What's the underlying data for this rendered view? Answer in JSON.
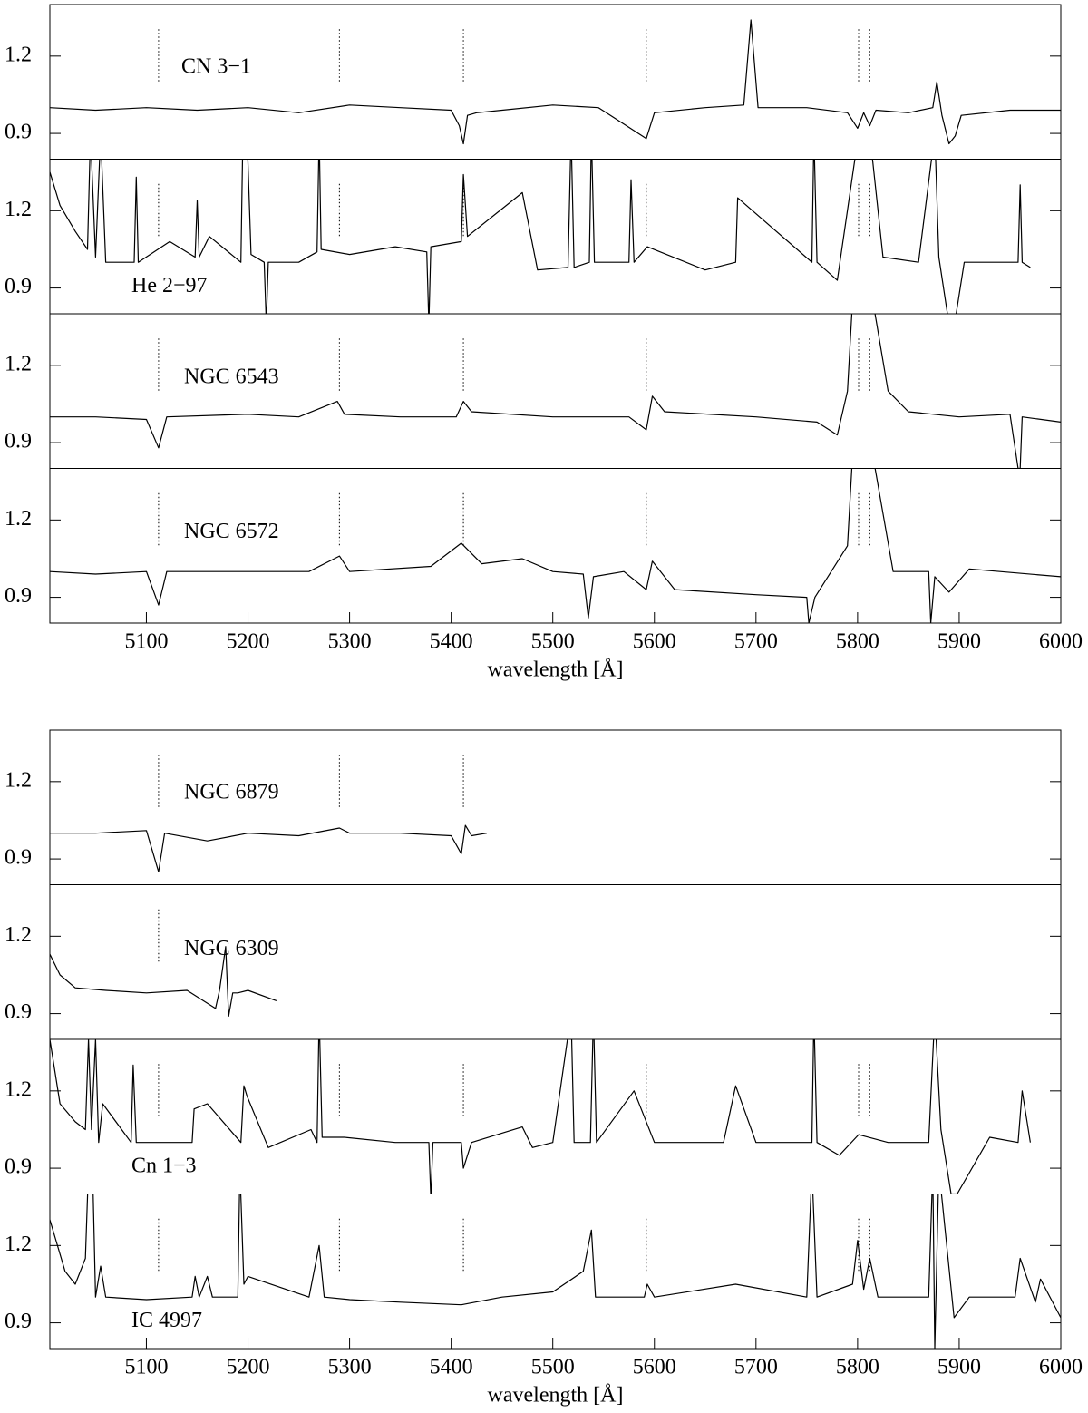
{
  "chart_data": [
    {
      "type": "line",
      "label": "CN 3−1",
      "xlim": [
        5005,
        6000
      ],
      "ylim": [
        0.8,
        1.4
      ],
      "yticks": [
        0.9,
        1.2
      ],
      "markers": [
        5112,
        5290,
        5412,
        5592,
        5801,
        5812
      ],
      "x": [
        5005,
        5050,
        5100,
        5150,
        5200,
        5250,
        5300,
        5350,
        5400,
        5408,
        5412,
        5416,
        5425,
        5450,
        5500,
        5545,
        5592,
        5600,
        5650,
        5688,
        5695,
        5702,
        5750,
        5790,
        5800,
        5806,
        5812,
        5818,
        5850,
        5874,
        5878,
        5883,
        5890,
        5896,
        5902,
        5950,
        6000
      ],
      "values": [
        1.0,
        0.99,
        1.0,
        0.99,
        1.0,
        0.98,
        1.01,
        1.0,
        0.99,
        0.93,
        0.86,
        0.97,
        0.98,
        0.99,
        1.01,
        1.0,
        0.88,
        0.98,
        1.0,
        1.01,
        1.34,
        1.0,
        1.0,
        0.98,
        0.92,
        0.98,
        0.93,
        0.99,
        0.98,
        1.0,
        1.1,
        0.97,
        0.86,
        0.89,
        0.97,
        0.99,
        0.99
      ]
    },
    {
      "type": "line",
      "label": "He 2−97",
      "xlim": [
        5005,
        6000
      ],
      "ylim": [
        0.8,
        1.4
      ],
      "yticks": [
        0.9,
        1.2
      ],
      "markers": [
        5112,
        5290,
        5412,
        5592,
        5801,
        5812
      ],
      "x": [
        5005,
        5015,
        5030,
        5042,
        5045,
        5050,
        5055,
        5060,
        5088,
        5090,
        5092,
        5123,
        5148,
        5150,
        5152,
        5162,
        5193,
        5195,
        5199,
        5203,
        5216,
        5218,
        5220,
        5250,
        5268,
        5270,
        5272,
        5300,
        5345,
        5376,
        5378,
        5380,
        5410,
        5412,
        5416,
        5470,
        5485,
        5515,
        5518,
        5521,
        5536,
        5538,
        5541,
        5575,
        5577,
        5580,
        5593,
        5650,
        5680,
        5682,
        5755,
        5757,
        5760,
        5780,
        5801,
        5812,
        5825,
        5860,
        5876,
        5880,
        5890,
        5897,
        5905,
        5958,
        5960,
        5962,
        5970
      ],
      "values": [
        1.35,
        1.22,
        1.12,
        1.05,
        1.5,
        1.02,
        1.5,
        1.0,
        1.0,
        1.33,
        1.0,
        1.08,
        1.02,
        1.24,
        1.02,
        1.1,
        1.0,
        1.5,
        1.5,
        1.03,
        1.0,
        0.76,
        1.0,
        1.0,
        1.04,
        1.5,
        1.05,
        1.03,
        1.06,
        1.04,
        0.76,
        1.06,
        1.08,
        1.34,
        1.1,
        1.27,
        0.97,
        0.98,
        1.5,
        0.98,
        1.0,
        1.5,
        1.0,
        1.0,
        1.32,
        1.0,
        1.06,
        0.97,
        1.0,
        1.25,
        1.0,
        1.5,
        1.0,
        0.93,
        1.5,
        1.5,
        1.02,
        1.0,
        1.5,
        1.02,
        0.76,
        0.8,
        1.0,
        1.0,
        1.3,
        1.0,
        0.98
      ]
    },
    {
      "type": "line",
      "label": "NGC 6543",
      "xlim": [
        5005,
        6000
      ],
      "ylim": [
        0.8,
        1.4
      ],
      "yticks": [
        0.9,
        1.2
      ],
      "markers": [
        5112,
        5290,
        5412,
        5592,
        5801,
        5812
      ],
      "x": [
        5005,
        5050,
        5100,
        5112,
        5120,
        5200,
        5250,
        5288,
        5295,
        5350,
        5405,
        5412,
        5420,
        5500,
        5575,
        5592,
        5598,
        5610,
        5700,
        5760,
        5780,
        5790,
        5795,
        5815,
        5830,
        5850,
        5900,
        5950,
        5958,
        5960,
        5962,
        6000
      ],
      "values": [
        1.0,
        1.0,
        0.99,
        0.88,
        1.0,
        1.01,
        1.0,
        1.06,
        1.01,
        1.0,
        1.0,
        1.06,
        1.02,
        1.0,
        1.0,
        0.95,
        1.08,
        1.02,
        1.0,
        0.98,
        0.93,
        1.1,
        1.45,
        1.45,
        1.1,
        1.02,
        1.0,
        1.01,
        0.8,
        0.8,
        1.0,
        0.98
      ]
    },
    {
      "type": "line",
      "label": "NGC 6572",
      "xlim": [
        5005,
        6000
      ],
      "ylim": [
        0.8,
        1.4
      ],
      "yticks": [
        0.9,
        1.2
      ],
      "markers": [
        5112,
        5290,
        5412,
        5592,
        5801,
        5812
      ],
      "xticks": [
        5100,
        5200,
        5300,
        5400,
        5500,
        5600,
        5700,
        5800,
        5900,
        6000
      ],
      "xlabel": "wavelength [Å]",
      "x": [
        5005,
        5050,
        5100,
        5112,
        5120,
        5200,
        5260,
        5290,
        5300,
        5380,
        5410,
        5430,
        5470,
        5500,
        5530,
        5535,
        5540,
        5570,
        5592,
        5598,
        5620,
        5700,
        5750,
        5752,
        5758,
        5790,
        5795,
        5815,
        5835,
        5870,
        5872,
        5876,
        5890,
        5910,
        6000
      ],
      "values": [
        1.0,
        0.99,
        1.0,
        0.87,
        1.0,
        1.0,
        1.0,
        1.06,
        1.0,
        1.02,
        1.11,
        1.03,
        1.05,
        1.0,
        0.99,
        0.82,
        0.98,
        1.0,
        0.93,
        1.04,
        0.93,
        0.91,
        0.9,
        0.8,
        0.9,
        1.1,
        1.45,
        1.45,
        1.0,
        1.0,
        0.8,
        0.98,
        0.92,
        1.01,
        0.98
      ]
    },
    {
      "type": "line",
      "label": "NGC 6879",
      "xlim": [
        5005,
        6000
      ],
      "ylim": [
        0.8,
        1.4
      ],
      "yticks": [
        0.9,
        1.2
      ],
      "markers": [
        5112,
        5290,
        5412
      ],
      "x": [
        5005,
        5050,
        5100,
        5112,
        5118,
        5160,
        5200,
        5250,
        5290,
        5300,
        5350,
        5400,
        5410,
        5414,
        5420,
        5435
      ],
      "values": [
        1.0,
        1.0,
        1.01,
        0.85,
        1.0,
        0.97,
        1.0,
        0.99,
        1.02,
        1.0,
        1.0,
        0.99,
        0.92,
        1.03,
        0.99,
        1.0
      ]
    },
    {
      "type": "line",
      "label": "NGC 6309",
      "xlim": [
        5005,
        6000
      ],
      "ylim": [
        0.8,
        1.4
      ],
      "yticks": [
        0.9,
        1.2
      ],
      "markers": [
        5112
      ],
      "x": [
        5005,
        5015,
        5030,
        5060,
        5100,
        5140,
        5168,
        5172,
        5178,
        5181,
        5185,
        5190,
        5200,
        5228
      ],
      "values": [
        1.13,
        1.05,
        1.0,
        0.99,
        0.98,
        0.99,
        0.92,
        0.99,
        1.16,
        0.89,
        0.98,
        0.98,
        0.99,
        0.95
      ]
    },
    {
      "type": "line",
      "label": "Cn 1−3",
      "xlim": [
        5005,
        6000
      ],
      "ylim": [
        0.8,
        1.4
      ],
      "yticks": [
        0.9,
        1.2
      ],
      "markers": [
        5112,
        5290,
        5412,
        5592,
        5801,
        5812
      ],
      "x": [
        5005,
        5015,
        5030,
        5040,
        5043,
        5046,
        5050,
        5053,
        5057,
        5085,
        5087,
        5090,
        5145,
        5147,
        5160,
        5193,
        5196,
        5199,
        5220,
        5262,
        5268,
        5270,
        5273,
        5295,
        5345,
        5378,
        5380,
        5382,
        5410,
        5412,
        5420,
        5470,
        5480,
        5500,
        5518,
        5521,
        5537,
        5540,
        5543,
        5580,
        5600,
        5668,
        5680,
        5700,
        5755,
        5757,
        5760,
        5782,
        5801,
        5830,
        5870,
        5876,
        5882,
        5892,
        5898,
        5930,
        5958,
        5962,
        5970
      ],
      "values": [
        1.4,
        1.15,
        1.08,
        1.05,
        1.4,
        1.05,
        1.4,
        1.0,
        1.15,
        1.0,
        1.3,
        1.0,
        1.0,
        1.13,
        1.15,
        1.0,
        1.22,
        1.18,
        0.98,
        1.05,
        1.0,
        1.5,
        1.02,
        1.02,
        1.0,
        1.0,
        0.78,
        1.0,
        1.0,
        0.9,
        1.0,
        1.06,
        0.98,
        1.0,
        1.5,
        1.0,
        1.0,
        1.5,
        1.0,
        1.2,
        1.0,
        1.0,
        1.22,
        1.0,
        1.0,
        1.5,
        1.0,
        0.95,
        1.03,
        1.0,
        1.0,
        1.5,
        1.05,
        0.8,
        0.8,
        1.02,
        1.0,
        1.2,
        1.0
      ]
    },
    {
      "type": "line",
      "label": "IC 4997",
      "xlim": [
        5005,
        6000
      ],
      "ylim": [
        0.8,
        1.4
      ],
      "yticks": [
        0.9,
        1.2
      ],
      "markers": [
        5112,
        5290,
        5412,
        5592,
        5801,
        5812
      ],
      "xticks": [
        5100,
        5200,
        5300,
        5400,
        5500,
        5600,
        5700,
        5800,
        5900,
        6000
      ],
      "xlabel": "wavelength [Å]",
      "x": [
        5005,
        5020,
        5030,
        5040,
        5043,
        5047,
        5050,
        5052,
        5055,
        5060,
        5100,
        5145,
        5148,
        5152,
        5160,
        5165,
        5190,
        5192,
        5196,
        5200,
        5260,
        5270,
        5275,
        5300,
        5350,
        5410,
        5450,
        5500,
        5530,
        5538,
        5542,
        5590,
        5593,
        5600,
        5680,
        5750,
        5755,
        5760,
        5795,
        5800,
        5806,
        5812,
        5820,
        5870,
        5874,
        5876,
        5880,
        5895,
        5910,
        5955,
        5960,
        5975,
        5980,
        6000
      ],
      "values": [
        1.3,
        1.1,
        1.05,
        1.15,
        1.5,
        1.5,
        1.0,
        1.05,
        1.12,
        1.0,
        0.99,
        1.0,
        1.08,
        1.0,
        1.08,
        1.0,
        1.0,
        1.5,
        1.05,
        1.08,
        1.0,
        1.2,
        1.0,
        0.99,
        0.98,
        0.97,
        1.0,
        1.02,
        1.1,
        1.26,
        1.0,
        1.0,
        1.05,
        1.0,
        1.05,
        1.0,
        1.5,
        1.0,
        1.05,
        1.22,
        1.03,
        1.15,
        1.0,
        1.0,
        1.5,
        0.8,
        1.5,
        0.92,
        1.0,
        1.0,
        1.15,
        0.98,
        1.07,
        0.92
      ]
    }
  ]
}
